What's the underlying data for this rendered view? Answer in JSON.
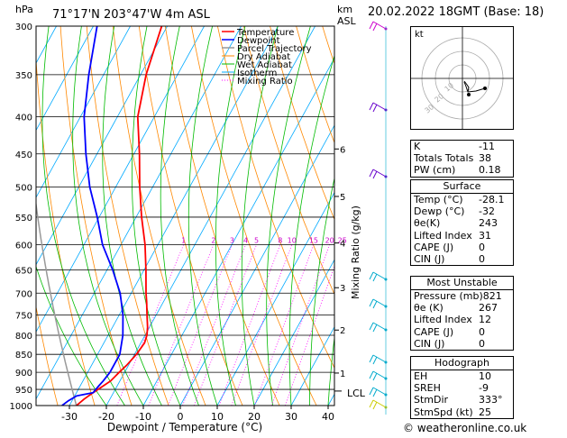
{
  "header": {
    "location": "71°17'N  203°47'W  4m  ASL",
    "datetime": "20.02.2022  18GMT  (Base: 18)",
    "unit_left": "hPa",
    "unit_right_top": "km",
    "unit_right_bottom": "ASL"
  },
  "legend": [
    {
      "name": "Temperature",
      "color": "#ff0000",
      "style": "solid"
    },
    {
      "name": "Dewpoint",
      "color": "#0000ff",
      "style": "solid"
    },
    {
      "name": "Parcel Trajectory",
      "color": "#999999",
      "style": "solid"
    },
    {
      "name": "Dry Adiabat",
      "color": "#ff8800",
      "style": "solid"
    },
    {
      "name": "Wet Adiabat",
      "color": "#00bb00",
      "style": "solid"
    },
    {
      "name": "Isotherm",
      "color": "#00aaff",
      "style": "solid"
    },
    {
      "name": "Mixing Ratio",
      "color": "#ff00ff",
      "style": "dotted"
    }
  ],
  "chart_data": {
    "type": "line",
    "xlabel": "Dewpoint / Temperature (°C)",
    "ylabel_right": "Mixing Ratio (g/kg)",
    "x_ticks": [
      "-30",
      "-20",
      "-10",
      "0",
      "10",
      "20",
      "30",
      "40"
    ],
    "pressure_ticks": [
      "300",
      "350",
      "400",
      "450",
      "500",
      "550",
      "600",
      "650",
      "700",
      "750",
      "800",
      "850",
      "900",
      "950",
      "1000"
    ],
    "km_ticks": [
      {
        "km": "1",
        "p": 902
      },
      {
        "km": "2",
        "p": 787
      },
      {
        "km": "3",
        "p": 688
      },
      {
        "km": "4",
        "p": 597
      },
      {
        "km": "5",
        "p": 515
      },
      {
        "km": "6",
        "p": 443
      }
    ],
    "lcl": {
      "label": "LCL",
      "p": 955
    },
    "mixing_ratio_labels": [
      "1",
      "2",
      "3",
      "4",
      "5",
      "8",
      "10",
      "15",
      "20",
      "25"
    ],
    "mixing_ratio_values": [
      1,
      2,
      3,
      4,
      5,
      8,
      10,
      15,
      20,
      25
    ],
    "series": [
      {
        "name": "Temperature",
        "p": [
          1000,
          980,
          960,
          940,
          925,
          900,
          880,
          850,
          820,
          800,
          780,
          750,
          720,
          700,
          650,
          600,
          550,
          500,
          450,
          400,
          350,
          300
        ],
        "t": [
          -28.1,
          -27.0,
          -25.5,
          -23.8,
          -22.5,
          -21.5,
          -20.5,
          -19.5,
          -19.0,
          -19.5,
          -20.5,
          -22.5,
          -24.5,
          -26.0,
          -29.5,
          -33.5,
          -38.5,
          -43.5,
          -48.5,
          -54.5,
          -58.5,
          -61.5
        ]
      },
      {
        "name": "Dewpoint",
        "p": [
          1000,
          985,
          970,
          965,
          960,
          940,
          925,
          900,
          850,
          800,
          750,
          700,
          650,
          600,
          550,
          500,
          450,
          400,
          350,
          300
        ],
        "td": [
          -32.0,
          -31.0,
          -29.5,
          -27.5,
          -25.5,
          -25.0,
          -24.5,
          -24.0,
          -24.0,
          -26.0,
          -29.0,
          -33.0,
          -38.5,
          -45.0,
          -50.5,
          -57.0,
          -63.0,
          -69.0,
          -74.0,
          -79.0
        ]
      }
    ]
  },
  "hodograph": {
    "label": "kt",
    "ring_labels": [
      "10",
      "20",
      "30"
    ]
  },
  "indices": [
    {
      "label": "K",
      "value": "-11"
    },
    {
      "label": "Totals Totals",
      "value": "38"
    },
    {
      "label": "PW (cm)",
      "value": "0.18"
    }
  ],
  "surface": {
    "title": "Surface",
    "rows": [
      {
        "label": "Temp (°C)",
        "value": "-28.1"
      },
      {
        "label": "Dewp (°C)",
        "value": "-32"
      },
      {
        "label": "θe(K)",
        "value": "243"
      },
      {
        "label": "Lifted Index",
        "value": "31"
      },
      {
        "label": "CAPE (J)",
        "value": "0"
      },
      {
        "label": "CIN (J)",
        "value": "0"
      }
    ]
  },
  "most_unstable": {
    "title": "Most Unstable",
    "rows": [
      {
        "label": "Pressure (mb)",
        "value": "821"
      },
      {
        "label": "θe (K)",
        "value": "267"
      },
      {
        "label": "Lifted Index",
        "value": "12"
      },
      {
        "label": "CAPE (J)",
        "value": "0"
      },
      {
        "label": "CIN (J)",
        "value": "0"
      }
    ]
  },
  "hodograph_stats": {
    "title": "Hodograph",
    "rows": [
      {
        "label": "EH",
        "value": "10"
      },
      {
        "label": "SREH",
        "value": "-9"
      },
      {
        "label": "StmDir",
        "value": "333°"
      },
      {
        "label": "StmSpd (kt)",
        "value": "25"
      }
    ]
  },
  "credit": "© weatheronline.co.uk"
}
